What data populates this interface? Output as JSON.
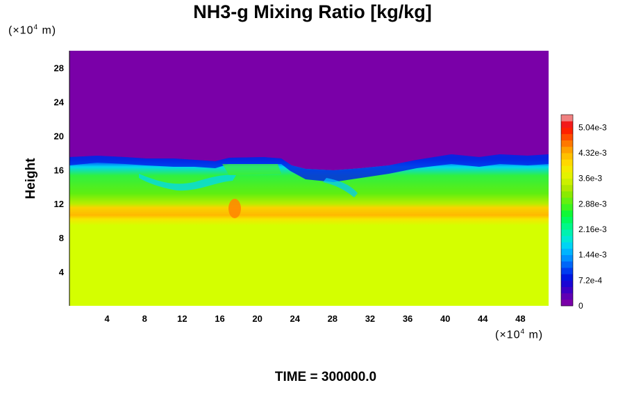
{
  "chart_data": {
    "type": "heatmap",
    "title": "NH3-g Mixing Ratio [kg/kg]",
    "ylabel": "Height",
    "xlabel": "",
    "x_unit": {
      "prefix": "(×10",
      "exp": "4",
      "suffix": " m)"
    },
    "y_unit": {
      "prefix": "(×10",
      "exp": "4",
      "suffix": " m)"
    },
    "xlim": [
      0,
      51
    ],
    "ylim": [
      0,
      30
    ],
    "x_ticks": [
      4,
      8,
      12,
      16,
      20,
      24,
      28,
      32,
      36,
      40,
      44,
      48
    ],
    "y_ticks": [
      4,
      8,
      12,
      16,
      20,
      24,
      28
    ],
    "colorbar": {
      "min": 0,
      "max": 0.0054,
      "levels": 30,
      "tick_values": [
        0,
        0.00072,
        0.00144,
        0.00216,
        0.00288,
        0.0036,
        0.00432,
        0.00504
      ],
      "tick_labels": [
        "0",
        "7.2e-4",
        "1.44e-3",
        "2.16e-3",
        "2.88e-3",
        "3.6e-3",
        "4.32e-3",
        "5.04e-3"
      ],
      "colors": [
        "#7a00a8",
        "#5f00b4",
        "#3c00c4",
        "#1a06d4",
        "#0016e2",
        "#003cf0",
        "#0066f8",
        "#0090ff",
        "#00b4ff",
        "#00d4f4",
        "#00e8d6",
        "#00f2b0",
        "#00f888",
        "#00fa5e",
        "#10f836",
        "#3cf420",
        "#64f010",
        "#8aea00",
        "#b0e800",
        "#ccf000",
        "#e4f200",
        "#f4ea00",
        "#ffd800",
        "#ffc000",
        "#ffa000",
        "#ff7800",
        "#ff4c00",
        "#ff2000",
        "#f21a1a",
        "#f08080"
      ]
    },
    "regions": [
      {
        "name": "upper",
        "y_range": [
          17,
          30
        ],
        "value": 0
      },
      {
        "name": "transition-top",
        "y_range": [
          15.5,
          17.5
        ],
        "value": 0.0012
      },
      {
        "name": "middle",
        "y_range": [
          11.5,
          15.5
        ],
        "value": 0.0029
      },
      {
        "name": "band",
        "y_range": [
          9.5,
          11.5
        ],
        "value": 0.0042
      },
      {
        "name": "lower",
        "y_range": [
          0,
          9.5
        ],
        "value": 0.0037
      }
    ]
  },
  "footer": {
    "time_label": "TIME = 300000.0"
  }
}
